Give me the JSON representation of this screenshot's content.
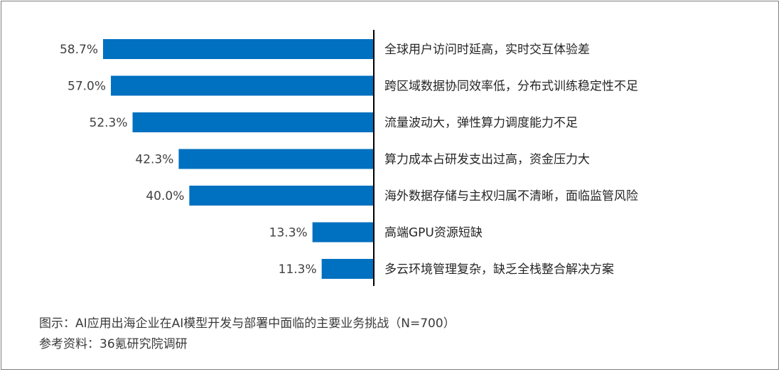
{
  "chart_data": {
    "type": "bar",
    "orientation": "horizontal",
    "categories": [
      "全球用户访问时延高，实时交互体验差",
      "跨区域数据协同效率低，分布式训练稳定性不足",
      "流量波动大，弹性算力调度能力不足",
      "算力成本占研发支出过高，资金压力大",
      "海外数据存储与主权归属不清晰，面临监管风险",
      "高端GPU资源短缺",
      "多云环境管理复杂，缺乏全栈整合解决方案"
    ],
    "values": [
      58.7,
      57.0,
      52.3,
      42.3,
      40.0,
      13.3,
      11.3
    ],
    "value_labels": [
      "58.7%",
      "57.0%",
      "52.3%",
      "42.3%",
      "40.0%",
      "13.3%",
      "11.3%"
    ],
    "xlim": [
      0,
      60
    ],
    "direction": "bars extend leftward from axis",
    "bar_color": "#0070C0",
    "axis_color": "#000000",
    "grid": false,
    "legend": "none"
  },
  "caption": {
    "figure": "图示：AI应用出海企业在AI模型开发与部署中面临的主要业务挑战（N=700）",
    "source": "参考资料：36氪研究院调研"
  }
}
